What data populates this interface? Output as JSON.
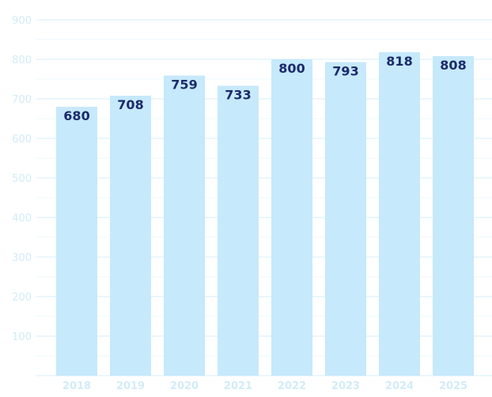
{
  "chart_data": {
    "type": "bar",
    "title": "",
    "xlabel": "",
    "ylabel": "",
    "categories": [
      "2018",
      "2019",
      "2020",
      "2021",
      "2022",
      "2023",
      "2024",
      "2025"
    ],
    "values": [
      680,
      708,
      759,
      733,
      800,
      793,
      818,
      808
    ],
    "value_labels": [
      "680",
      "708",
      "759",
      "733",
      "800",
      "793",
      "818",
      "808"
    ],
    "ylim": [
      0,
      900
    ],
    "yticks": [
      100,
      200,
      300,
      400,
      500,
      600,
      700,
      800,
      900
    ],
    "ytick_labels": [
      "100",
      "200",
      "300",
      "400",
      "500",
      "600",
      "700",
      "800",
      "900"
    ],
    "grid": true,
    "minor_grid": true,
    "legend": "none",
    "colors": {
      "bar": "#c6e9fb",
      "data_label": "#1c2b6b",
      "axis_text": "#d2ecf7",
      "grid_major": "#d4eef8",
      "grid_minor": "#eef8fc"
    }
  }
}
